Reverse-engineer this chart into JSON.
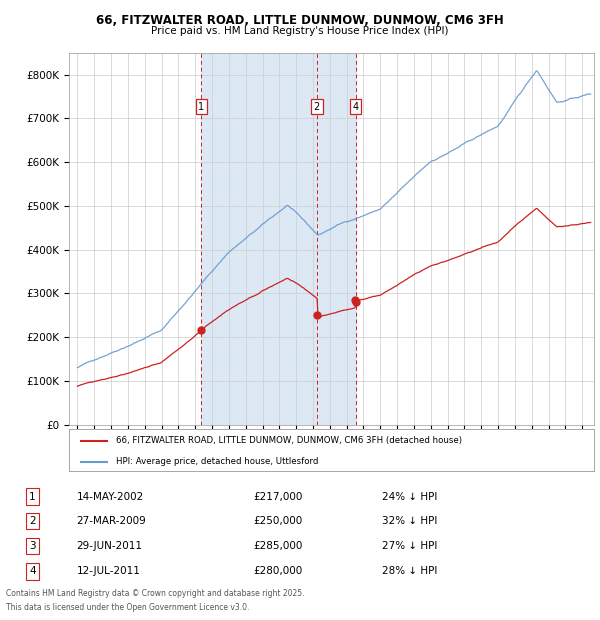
{
  "title": "66, FITZWALTER ROAD, LITTLE DUNMOW, DUNMOW, CM6 3FH",
  "subtitle": "Price paid vs. HM Land Registry's House Price Index (HPI)",
  "legend_line1": "66, FITZWALTER ROAD, LITTLE DUNMOW, DUNMOW, CM6 3FH (detached house)",
  "legend_line2": "HPI: Average price, detached house, Uttlesford",
  "footer1": "Contains HM Land Registry data © Crown copyright and database right 2025.",
  "footer2": "This data is licensed under the Open Government Licence v3.0.",
  "transactions": [
    {
      "num": 1,
      "date": "14-MAY-2002",
      "price": 217000,
      "pct": "24% ↓ HPI",
      "year": 2002.37
    },
    {
      "num": 2,
      "date": "27-MAR-2009",
      "price": 250000,
      "pct": "32% ↓ HPI",
      "year": 2009.23
    },
    {
      "num": 3,
      "date": "29-JUN-2011",
      "price": 285000,
      "pct": "27% ↓ HPI",
      "year": 2011.49
    },
    {
      "num": 4,
      "date": "12-JUL-2011",
      "price": 280000,
      "pct": "28% ↓ HPI",
      "year": 2011.53
    }
  ],
  "hpi_color": "#6699cc",
  "price_color": "#cc2222",
  "vline_color": "#cc2222",
  "bg_shade_color": "#dde8f5",
  "plot_bg": "#ffffff",
  "grid_color": "#cccccc",
  "ylim": [
    0,
    850000
  ],
  "xlim_start": 1994.5,
  "xlim_end": 2025.7,
  "yticks": [
    0,
    100000,
    200000,
    300000,
    400000,
    500000,
    600000,
    700000,
    800000
  ],
  "xtick_start": 1995,
  "xtick_end": 2025
}
